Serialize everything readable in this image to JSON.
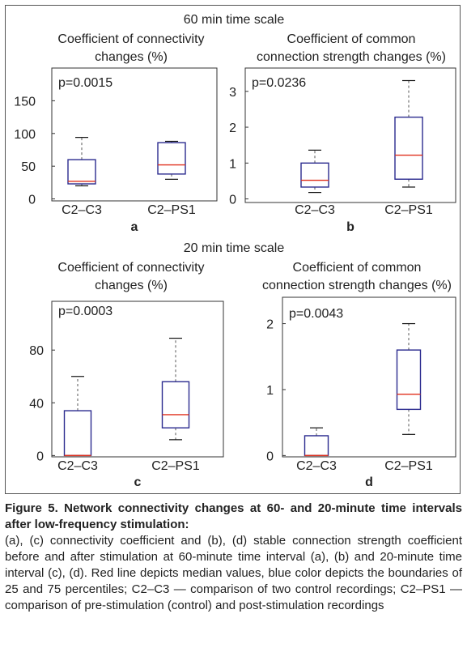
{
  "sections": [
    {
      "title": "60 min time scale"
    },
    {
      "title": "20 min time scale"
    }
  ],
  "chart_data": [
    {
      "id": "a",
      "panel_letter": "a",
      "type": "boxplot",
      "title": [
        "Coefficient of connectivity",
        "changes (%)"
      ],
      "annotation": "p=0.0015",
      "categories": [
        "C2–C3",
        "C2–PS1"
      ],
      "yticks": [
        0,
        50,
        100,
        150
      ],
      "ylim": [
        -3,
        200
      ],
      "boxes": [
        {
          "whisker_low": 20,
          "q1": 23,
          "median": 27,
          "q3": 60,
          "whisker_high": 94
        },
        {
          "whisker_low": 30,
          "q1": 38,
          "median": 52,
          "q3": 86,
          "whisker_high": 88
        }
      ]
    },
    {
      "id": "b",
      "panel_letter": "b",
      "type": "boxplot",
      "title": [
        "Coefficient of common",
        "connection strength changes (%)"
      ],
      "annotation": "p=0.0236",
      "categories": [
        "C2–C3",
        "C2–PS1"
      ],
      "yticks": [
        0,
        1,
        2,
        3
      ],
      "ylim": [
        -0.1,
        3.65
      ],
      "boxes": [
        {
          "whisker_low": 0.18,
          "q1": 0.33,
          "median": 0.52,
          "q3": 1.0,
          "whisker_high": 1.36
        },
        {
          "whisker_low": 0.33,
          "q1": 0.55,
          "median": 1.22,
          "q3": 2.28,
          "whisker_high": 3.3
        }
      ]
    },
    {
      "id": "c",
      "panel_letter": "c",
      "type": "boxplot",
      "title": [
        "Coefficient of connectivity",
        "changes (%)"
      ],
      "annotation": "p=0.0003",
      "categories": [
        "C2–C3",
        "C2–PS1"
      ],
      "yticks": [
        0,
        40,
        80
      ],
      "ylim": [
        -1,
        117
      ],
      "boxes": [
        {
          "whisker_low": 0,
          "q1": 0,
          "median": 0,
          "q3": 34,
          "whisker_high": 60
        },
        {
          "whisker_low": 12,
          "q1": 21,
          "median": 31,
          "q3": 56,
          "whisker_high": 89
        }
      ]
    },
    {
      "id": "d",
      "panel_letter": "d",
      "type": "boxplot",
      "title": [
        "Coefficient of common",
        "connection strength changes (%)"
      ],
      "annotation": "p=0.0043",
      "categories": [
        "C2–C3",
        "C2–PS1"
      ],
      "yticks": [
        0,
        1,
        2
      ],
      "ylim": [
        -0.02,
        2.4
      ],
      "boxes": [
        {
          "whisker_low": 0,
          "q1": 0,
          "median": 0,
          "q3": 0.3,
          "whisker_high": 0.42
        },
        {
          "whisker_low": 0.32,
          "q1": 0.7,
          "median": 0.93,
          "q3": 1.6,
          "whisker_high": 2.0
        }
      ]
    }
  ],
  "colors": {
    "box": "#2b2b8f",
    "median": "#e0301e",
    "whisker": "#555555",
    "axis": "#333333",
    "text": "#222222"
  },
  "caption": {
    "title": "Figure 5. Network connectivity changes at 60- and 20-minute time intervals after low-frequency stimulation:",
    "body": "(a), (c) connectivity coefficient and (b), (d) stable connection strength coefficient before and after stimulation at 60-minute time interval (a), (b) and 20-minute time interval (c), (d). Red line depicts median values, blue color depicts the boundaries of 25 and 75 percentiles; C2–C3 — comparison of two control recordings; C2–PS1 — comparison of pre-stimulation (control) and post-stimulation recordings"
  }
}
